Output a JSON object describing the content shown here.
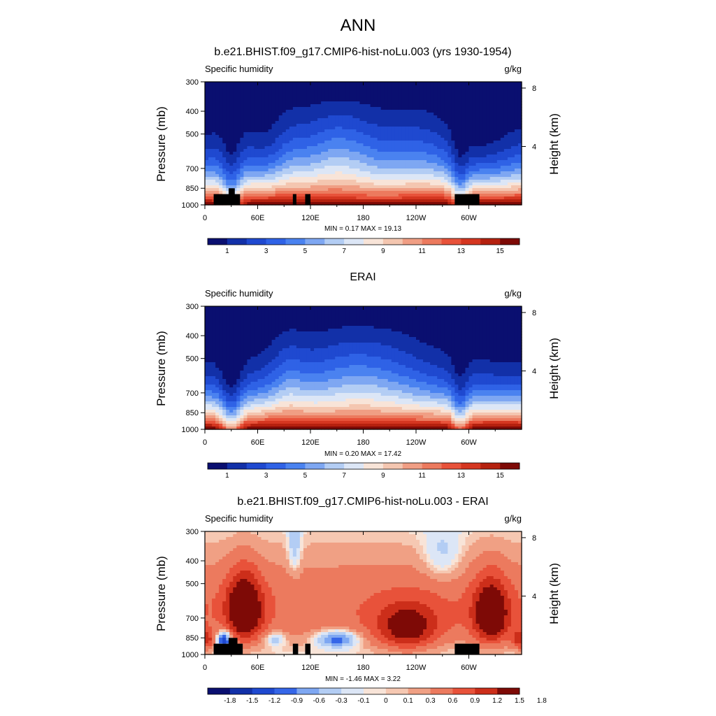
{
  "main_title": "ANN",
  "colormaps": {
    "abs": [
      "#0a0f70",
      "#1230a8",
      "#1f49d0",
      "#2f62e6",
      "#4a82f0",
      "#7ea7f2",
      "#b3cdf4",
      "#dce6f6",
      "#f8e4d8",
      "#f4c6b0",
      "#f09e84",
      "#ec7a5e",
      "#e8523a",
      "#d53620",
      "#b5210f",
      "#7e0a06"
    ],
    "diff": [
      "#0a0f70",
      "#1230a8",
      "#1f49d0",
      "#3566e8",
      "#7ea7f2",
      "#b3cdf4",
      "#dce6f6",
      "#f8e4d8",
      "#f6c8b2",
      "#f0a084",
      "#ec7a5e",
      "#e8523a",
      "#cc2e1a",
      "#7e0a06"
    ]
  },
  "panels": [
    {
      "title": "b.e21.BHIST.f09_g17.CMIP6-hist-noLu.003 (yrs 1930-1954)",
      "left_label": "Specific humidity",
      "right_label": "g/kg",
      "stats": "MIN =   0.17  MAX =  19.13",
      "colorbar_labels": [
        "1",
        "3",
        "5",
        "7",
        "9",
        "11",
        "13",
        "15"
      ]
    },
    {
      "title": "ERAI",
      "left_label": "Specific humidity",
      "right_label": "g/kg",
      "stats": "MIN =   0.20  MAX =  17.42",
      "colorbar_labels": [
        "1",
        "3",
        "5",
        "7",
        "9",
        "11",
        "13",
        "15"
      ]
    },
    {
      "title": "b.e21.BHIST.f09_g17.CMIP6-hist-noLu.003 - ERAI",
      "left_label": "Specific humidity",
      "right_label": "g/kg",
      "stats": "MIN =  -1.46  MAX =   3.22",
      "colorbar_labels": [
        "-1.8",
        "-1.5",
        "-1.2",
        "-0.9",
        "-0.6",
        "-0.3",
        "-0.1",
        "0",
        "0.1",
        "0.3",
        "0.6",
        "0.9",
        "1.2",
        "1.5",
        "1.8"
      ]
    }
  ],
  "chart_data": [
    {
      "type": "heatmap",
      "title": "b.e21.BHIST.f09_g17.CMIP6-hist-noLu.003 (yrs 1930-1954)",
      "field": "Specific humidity",
      "units": "g/kg",
      "ylabel": "Pressure (mb)",
      "ylabel_right": "Height (km)",
      "x_ticks": [
        "0",
        "60E",
        "120E",
        "180",
        "120W",
        "60W"
      ],
      "x_tick_values": [
        0,
        60,
        120,
        180,
        240,
        300
      ],
      "xlim": [
        0,
        360
      ],
      "y_ticks": [
        "300",
        "400",
        "500",
        "700",
        "850",
        "1000"
      ],
      "y_tick_values": [
        300,
        400,
        500,
        700,
        850,
        1000
      ],
      "ylim": [
        1000,
        300
      ],
      "y_log": true,
      "height_ticks": [
        "8",
        "4"
      ],
      "height_values_km": [
        8,
        4
      ],
      "levels": [
        0,
        1,
        2,
        3,
        4,
        5,
        6,
        7,
        8,
        9,
        10,
        11,
        12,
        13,
        14,
        15
      ],
      "min": 0.17,
      "max": 19.13,
      "masked_topography": [
        [
          10,
          40,
          900
        ],
        [
          27,
          34,
          850
        ],
        [
          100,
          104,
          900
        ],
        [
          114,
          120,
          900
        ],
        [
          284,
          312,
          900
        ]
      ]
    },
    {
      "type": "heatmap",
      "title": "ERAI",
      "field": "Specific humidity",
      "units": "g/kg",
      "ylabel": "Pressure (mb)",
      "ylabel_right": "Height (km)",
      "x_ticks": [
        "0",
        "60E",
        "120E",
        "180",
        "120W",
        "60W"
      ],
      "x_tick_values": [
        0,
        60,
        120,
        180,
        240,
        300
      ],
      "xlim": [
        0,
        360
      ],
      "y_ticks": [
        "300",
        "400",
        "500",
        "700",
        "850",
        "1000"
      ],
      "y_tick_values": [
        300,
        400,
        500,
        700,
        850,
        1000
      ],
      "ylim": [
        1000,
        300
      ],
      "y_log": true,
      "height_ticks": [
        "8",
        "4"
      ],
      "height_values_km": [
        8,
        4
      ],
      "levels": [
        0,
        1,
        2,
        3,
        4,
        5,
        6,
        7,
        8,
        9,
        10,
        11,
        12,
        13,
        14,
        15
      ],
      "min": 0.2,
      "max": 17.42
    },
    {
      "type": "heatmap",
      "title": "b.e21.BHIST.f09_g17.CMIP6-hist-noLu.003 - ERAI",
      "field": "Specific humidity",
      "units": "g/kg",
      "ylabel": "Pressure (mb)",
      "ylabel_right": "Height (km)",
      "x_ticks": [
        "0",
        "60E",
        "120E",
        "180",
        "120W",
        "60W"
      ],
      "x_tick_values": [
        0,
        60,
        120,
        180,
        240,
        300
      ],
      "xlim": [
        0,
        360
      ],
      "y_ticks": [
        "300",
        "400",
        "500",
        "700",
        "850",
        "1000"
      ],
      "y_tick_values": [
        300,
        400,
        500,
        700,
        850,
        1000
      ],
      "ylim": [
        1000,
        300
      ],
      "y_log": true,
      "height_ticks": [
        "8",
        "4"
      ],
      "height_values_km": [
        8,
        4
      ],
      "levels": [
        -1.8,
        -1.5,
        -1.2,
        -0.9,
        -0.6,
        -0.3,
        -0.1,
        0,
        0.1,
        0.3,
        0.6,
        0.9,
        1.2,
        1.5,
        1.8
      ],
      "min": -1.46,
      "max": 3.22,
      "masked_topography": [
        [
          10,
          43,
          900
        ],
        [
          27,
          37,
          850
        ],
        [
          100,
          106,
          900
        ],
        [
          114,
          120,
          900
        ],
        [
          284,
          312,
          900
        ]
      ]
    }
  ]
}
